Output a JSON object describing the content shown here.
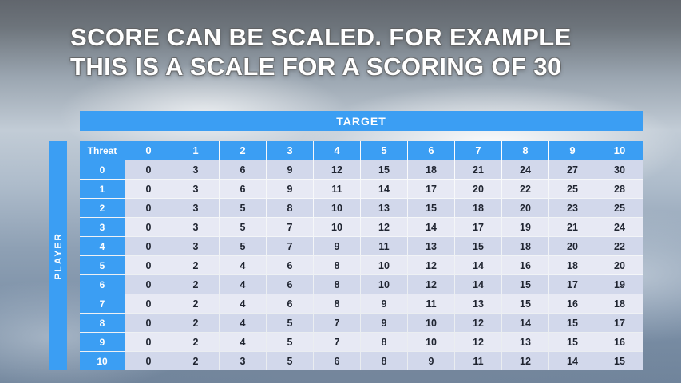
{
  "slide": {
    "title_line1": "SCORE CAN BE SCALED. FOR EXAMPLE",
    "title_line2": "THIS IS A SCALE FOR A SCORING OF 30"
  },
  "table": {
    "target_label": "TARGET",
    "player_label": "PLAYER",
    "corner_label": "Threat",
    "column_headers": [
      "0",
      "1",
      "2",
      "3",
      "4",
      "5",
      "6",
      "7",
      "8",
      "9",
      "10"
    ],
    "rows": [
      {
        "header": "0",
        "values": [
          0,
          3,
          6,
          9,
          12,
          15,
          18,
          21,
          24,
          27,
          30
        ]
      },
      {
        "header": "1",
        "values": [
          0,
          3,
          6,
          9,
          11,
          14,
          17,
          20,
          22,
          25,
          28
        ]
      },
      {
        "header": "2",
        "values": [
          0,
          3,
          5,
          8,
          10,
          13,
          15,
          18,
          20,
          23,
          25
        ]
      },
      {
        "header": "3",
        "values": [
          0,
          3,
          5,
          7,
          10,
          12,
          14,
          17,
          19,
          21,
          24
        ]
      },
      {
        "header": "4",
        "values": [
          0,
          3,
          5,
          7,
          9,
          11,
          13,
          15,
          18,
          20,
          22
        ]
      },
      {
        "header": "5",
        "values": [
          0,
          2,
          4,
          6,
          8,
          10,
          12,
          14,
          16,
          18,
          20
        ]
      },
      {
        "header": "6",
        "values": [
          0,
          2,
          4,
          6,
          8,
          10,
          12,
          14,
          15,
          17,
          19
        ]
      },
      {
        "header": "7",
        "values": [
          0,
          2,
          4,
          6,
          8,
          9,
          11,
          13,
          15,
          16,
          18
        ]
      },
      {
        "header": "8",
        "values": [
          0,
          2,
          4,
          5,
          7,
          9,
          10,
          12,
          14,
          15,
          17
        ]
      },
      {
        "header": "9",
        "values": [
          0,
          2,
          4,
          5,
          7,
          8,
          10,
          12,
          13,
          15,
          16
        ]
      },
      {
        "header": "10",
        "values": [
          0,
          2,
          3,
          5,
          6,
          8,
          9,
          11,
          12,
          14,
          15
        ]
      }
    ]
  },
  "colors": {
    "accent_blue": "#3b9ef3",
    "band_dark": "#d2d8eb",
    "band_light": "#e7e9f4"
  }
}
